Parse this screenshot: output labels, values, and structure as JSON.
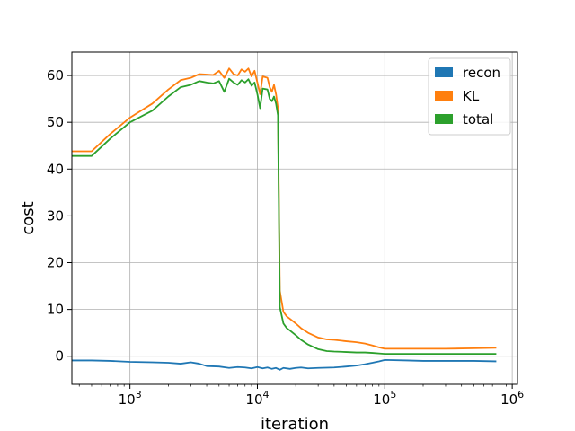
{
  "chart_data": {
    "type": "line",
    "xlabel": "iteration",
    "ylabel": "cost",
    "xscale": "log",
    "xlim": [
      350,
      1100000
    ],
    "ylim": [
      -6,
      65
    ],
    "grid": true,
    "legend_position": "top-right",
    "x_ticks": [
      {
        "value": 1000,
        "base": "10",
        "exp": "3"
      },
      {
        "value": 10000,
        "base": "10",
        "exp": "4"
      },
      {
        "value": 100000,
        "base": "10",
        "exp": "5"
      },
      {
        "value": 1000000,
        "base": "10",
        "exp": "6"
      }
    ],
    "y_ticks": [
      0,
      10,
      20,
      30,
      40,
      50,
      60
    ],
    "series": [
      {
        "name": "recon",
        "color": "#1f77b4",
        "points": [
          [
            350,
            -0.9
          ],
          [
            500,
            -0.9
          ],
          [
            700,
            -1.0
          ],
          [
            1000,
            -1.2
          ],
          [
            1500,
            -1.3
          ],
          [
            2000,
            -1.4
          ],
          [
            2500,
            -1.6
          ],
          [
            3000,
            -1.3
          ],
          [
            3500,
            -1.6
          ],
          [
            4000,
            -2.1
          ],
          [
            5000,
            -2.2
          ],
          [
            6000,
            -2.5
          ],
          [
            7000,
            -2.3
          ],
          [
            8000,
            -2.4
          ],
          [
            9000,
            -2.6
          ],
          [
            10000,
            -2.3
          ],
          [
            11000,
            -2.6
          ],
          [
            12000,
            -2.4
          ],
          [
            13000,
            -2.7
          ],
          [
            14000,
            -2.5
          ],
          [
            15000,
            -2.9
          ],
          [
            16000,
            -2.5
          ],
          [
            18000,
            -2.7
          ],
          [
            20000,
            -2.5
          ],
          [
            22000,
            -2.4
          ],
          [
            25000,
            -2.6
          ],
          [
            30000,
            -2.5
          ],
          [
            40000,
            -2.4
          ],
          [
            50000,
            -2.2
          ],
          [
            60000,
            -2.0
          ],
          [
            70000,
            -1.7
          ],
          [
            80000,
            -1.4
          ],
          [
            90000,
            -1.1
          ],
          [
            100000,
            -0.8
          ],
          [
            150000,
            -0.9
          ],
          [
            200000,
            -1.0
          ],
          [
            300000,
            -1.0
          ],
          [
            500000,
            -1.0
          ],
          [
            750000,
            -1.1
          ]
        ]
      },
      {
        "name": "KL",
        "color": "#ff7f0e",
        "points": [
          [
            350,
            43.8
          ],
          [
            500,
            43.8
          ],
          [
            700,
            47.5
          ],
          [
            1000,
            51.0
          ],
          [
            1500,
            54.0
          ],
          [
            2000,
            57.0
          ],
          [
            2500,
            59.0
          ],
          [
            3000,
            59.5
          ],
          [
            3500,
            60.3
          ],
          [
            4000,
            60.2
          ],
          [
            4500,
            60.1
          ],
          [
            5000,
            61.0
          ],
          [
            5500,
            59.5
          ],
          [
            6000,
            61.5
          ],
          [
            6500,
            60.3
          ],
          [
            7000,
            60.0
          ],
          [
            7500,
            61.3
          ],
          [
            8000,
            60.8
          ],
          [
            8500,
            61.5
          ],
          [
            9000,
            59.8
          ],
          [
            9500,
            61.0
          ],
          [
            10000,
            58.5
          ],
          [
            10500,
            56.0
          ],
          [
            11000,
            59.8
          ],
          [
            12000,
            59.5
          ],
          [
            12500,
            57.5
          ],
          [
            13000,
            56.5
          ],
          [
            13500,
            58.0
          ],
          [
            14000,
            56.0
          ],
          [
            14500,
            53.0
          ],
          [
            15000,
            14.0
          ],
          [
            16000,
            9.5
          ],
          [
            17000,
            8.5
          ],
          [
            18000,
            8.0
          ],
          [
            20000,
            7.0
          ],
          [
            22000,
            6.0
          ],
          [
            25000,
            5.0
          ],
          [
            30000,
            4.0
          ],
          [
            35000,
            3.6
          ],
          [
            40000,
            3.5
          ],
          [
            50000,
            3.2
          ],
          [
            60000,
            3.0
          ],
          [
            70000,
            2.7
          ],
          [
            80000,
            2.3
          ],
          [
            90000,
            1.9
          ],
          [
            100000,
            1.6
          ],
          [
            150000,
            1.6
          ],
          [
            200000,
            1.6
          ],
          [
            300000,
            1.6
          ],
          [
            500000,
            1.7
          ],
          [
            750000,
            1.8
          ]
        ]
      },
      {
        "name": "total",
        "color": "#2ca02c",
        "points": [
          [
            350,
            42.8
          ],
          [
            500,
            42.8
          ],
          [
            700,
            46.5
          ],
          [
            1000,
            50.0
          ],
          [
            1500,
            52.5
          ],
          [
            2000,
            55.5
          ],
          [
            2500,
            57.5
          ],
          [
            3000,
            58.0
          ],
          [
            3500,
            58.8
          ],
          [
            4000,
            58.5
          ],
          [
            4500,
            58.3
          ],
          [
            5000,
            58.8
          ],
          [
            5500,
            56.5
          ],
          [
            6000,
            59.3
          ],
          [
            6500,
            58.5
          ],
          [
            7000,
            58.0
          ],
          [
            7500,
            59.0
          ],
          [
            8000,
            58.5
          ],
          [
            8500,
            59.2
          ],
          [
            9000,
            57.8
          ],
          [
            9500,
            58.5
          ],
          [
            10000,
            56.0
          ],
          [
            10500,
            53.0
          ],
          [
            11000,
            57.2
          ],
          [
            12000,
            57.0
          ],
          [
            12500,
            55.0
          ],
          [
            13000,
            54.5
          ],
          [
            13500,
            55.5
          ],
          [
            14000,
            54.0
          ],
          [
            14500,
            51.5
          ],
          [
            15000,
            10.5
          ],
          [
            16000,
            7.0
          ],
          [
            17000,
            6.0
          ],
          [
            18000,
            5.5
          ],
          [
            20000,
            4.5
          ],
          [
            22000,
            3.5
          ],
          [
            25000,
            2.5
          ],
          [
            30000,
            1.5
          ],
          [
            35000,
            1.1
          ],
          [
            40000,
            1.0
          ],
          [
            50000,
            0.9
          ],
          [
            60000,
            0.8
          ],
          [
            70000,
            0.8
          ],
          [
            80000,
            0.7
          ],
          [
            90000,
            0.6
          ],
          [
            100000,
            0.5
          ],
          [
            150000,
            0.5
          ],
          [
            200000,
            0.5
          ],
          [
            300000,
            0.5
          ],
          [
            500000,
            0.5
          ],
          [
            750000,
            0.5
          ]
        ]
      }
    ]
  }
}
